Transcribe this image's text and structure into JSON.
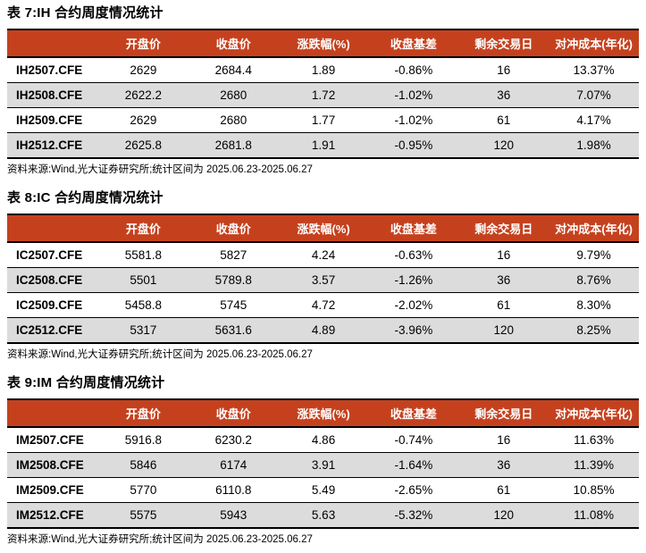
{
  "colors": {
    "accent": "#c5411e",
    "stripe": "#dcdcdc",
    "border": "#000000",
    "header_text": "#ffffff"
  },
  "tables": [
    {
      "title": "表 7:IH 合约周度情况统计",
      "columns": [
        "",
        "开盘价",
        "收盘价",
        "涨跌幅(%)",
        "收盘基差",
        "剩余交易日",
        "对冲成本(年化)"
      ],
      "rows": [
        [
          "IH2507.CFE",
          "2629",
          "2684.4",
          "1.89",
          "-0.86%",
          "16",
          "13.37%"
        ],
        [
          "IH2508.CFE",
          "2622.2",
          "2680",
          "1.72",
          "-1.02%",
          "36",
          "7.07%"
        ],
        [
          "IH2509.CFE",
          "2629",
          "2680",
          "1.77",
          "-1.02%",
          "61",
          "4.17%"
        ],
        [
          "IH2512.CFE",
          "2625.8",
          "2681.8",
          "1.91",
          "-0.95%",
          "120",
          "1.98%"
        ]
      ],
      "source": "资料来源:Wind,光大证券研究所;统计区间为 2025.06.23-2025.06.27"
    },
    {
      "title": "表 8:IC 合约周度情况统计",
      "columns": [
        "",
        "开盘价",
        "收盘价",
        "涨跌幅(%)",
        "收盘基差",
        "剩余交易日",
        "对冲成本(年化)"
      ],
      "rows": [
        [
          "IC2507.CFE",
          "5581.8",
          "5827",
          "4.24",
          "-0.63%",
          "16",
          "9.79%"
        ],
        [
          "IC2508.CFE",
          "5501",
          "5789.8",
          "3.57",
          "-1.26%",
          "36",
          "8.76%"
        ],
        [
          "IC2509.CFE",
          "5458.8",
          "5745",
          "4.72",
          "-2.02%",
          "61",
          "8.30%"
        ],
        [
          "IC2512.CFE",
          "5317",
          "5631.6",
          "4.89",
          "-3.96%",
          "120",
          "8.25%"
        ]
      ],
      "source": "资料来源:Wind,光大证券研究所;统计区间为 2025.06.23-2025.06.27"
    },
    {
      "title": "表 9:IM 合约周度情况统计",
      "columns": [
        "",
        "开盘价",
        "收盘价",
        "涨跌幅(%)",
        "收盘基差",
        "剩余交易日",
        "对冲成本(年化)"
      ],
      "rows": [
        [
          "IM2507.CFE",
          "5916.8",
          "6230.2",
          "4.86",
          "-0.74%",
          "16",
          "11.63%"
        ],
        [
          "IM2508.CFE",
          "5846",
          "6174",
          "3.91",
          "-1.64%",
          "36",
          "11.39%"
        ],
        [
          "IM2509.CFE",
          "5770",
          "6110.8",
          "5.49",
          "-2.65%",
          "61",
          "10.85%"
        ],
        [
          "IM2512.CFE",
          "5575",
          "5943",
          "5.63",
          "-5.32%",
          "120",
          "11.08%"
        ]
      ],
      "source": "资料来源:Wind,光大证券研究所;统计区间为 2025.06.23-2025.06.27"
    }
  ]
}
